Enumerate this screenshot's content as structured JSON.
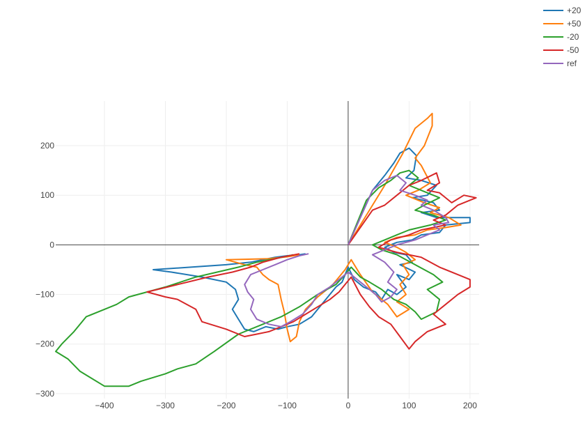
{
  "chart_data": {
    "type": "line",
    "title": "",
    "xlabel": "",
    "ylabel": "",
    "xlim": [
      -480,
      215
    ],
    "ylim": [
      -310,
      290
    ],
    "xticks": [
      -400,
      -300,
      -200,
      -100,
      0,
      100,
      200
    ],
    "yticks": [
      -300,
      -200,
      -100,
      0,
      100,
      200
    ],
    "xtick_labels": [
      "−400",
      "−300",
      "−200",
      "−100",
      "0",
      "100",
      "200"
    ],
    "ytick_labels": [
      "−300",
      "−200",
      "−100",
      "0",
      "100",
      "200"
    ],
    "grid": true,
    "zero_lines": true,
    "legend_position": "top-right",
    "series": [
      {
        "name": "+20",
        "color": "#1f77b4",
        "points": [
          [
            0,
            0
          ],
          [
            40,
            110
          ],
          [
            60,
            140
          ],
          [
            75,
            165
          ],
          [
            85,
            185
          ],
          [
            100,
            195
          ],
          [
            112,
            180
          ],
          [
            108,
            150
          ],
          [
            95,
            135
          ],
          [
            120,
            130
          ],
          [
            145,
            120
          ],
          [
            130,
            100
          ],
          [
            105,
            95
          ],
          [
            140,
            85
          ],
          [
            150,
            70
          ],
          [
            120,
            65
          ],
          [
            145,
            55
          ],
          [
            200,
            55
          ],
          [
            200,
            45
          ],
          [
            160,
            40
          ],
          [
            150,
            25
          ],
          [
            120,
            20
          ],
          [
            105,
            10
          ],
          [
            80,
            5
          ],
          [
            60,
            -5
          ],
          [
            75,
            -15
          ],
          [
            95,
            -20
          ],
          [
            105,
            -35
          ],
          [
            85,
            -40
          ],
          [
            110,
            -55
          ],
          [
            100,
            -70
          ],
          [
            80,
            -60
          ],
          [
            95,
            -85
          ],
          [
            80,
            -100
          ],
          [
            65,
            -90
          ],
          [
            55,
            -110
          ],
          [
            45,
            -95
          ],
          [
            25,
            -85
          ],
          [
            10,
            -70
          ],
          [
            0,
            -45
          ],
          [
            -10,
            -75
          ],
          [
            -20,
            -85
          ],
          [
            -40,
            -115
          ],
          [
            -60,
            -145
          ],
          [
            -80,
            -160
          ],
          [
            -100,
            -165
          ],
          [
            -115,
            -170
          ],
          [
            -135,
            -165
          ],
          [
            -155,
            -175
          ],
          [
            -170,
            -170
          ],
          [
            -180,
            -150
          ],
          [
            -190,
            -130
          ],
          [
            -180,
            -110
          ],
          [
            -185,
            -90
          ],
          [
            -200,
            -75
          ],
          [
            -240,
            -65
          ],
          [
            -290,
            -55
          ],
          [
            -320,
            -50
          ],
          [
            -200,
            -40
          ],
          [
            -160,
            -35
          ],
          [
            -140,
            -30
          ],
          [
            -120,
            -25
          ],
          [
            -100,
            -22
          ],
          [
            -80,
            -20
          ],
          [
            -70,
            -18
          ]
        ]
      },
      {
        "name": "+50",
        "color": "#ff7f0e",
        "points": [
          [
            0,
            0
          ],
          [
            60,
            120
          ],
          [
            90,
            185
          ],
          [
            110,
            235
          ],
          [
            130,
            255
          ],
          [
            138,
            265
          ],
          [
            138,
            240
          ],
          [
            125,
            200
          ],
          [
            110,
            175
          ],
          [
            120,
            160
          ],
          [
            135,
            125
          ],
          [
            115,
            110
          ],
          [
            95,
            100
          ],
          [
            125,
            85
          ],
          [
            150,
            75
          ],
          [
            135,
            65
          ],
          [
            165,
            55
          ],
          [
            185,
            40
          ],
          [
            160,
            35
          ],
          [
            130,
            30
          ],
          [
            110,
            20
          ],
          [
            80,
            15
          ],
          [
            60,
            5
          ],
          [
            80,
            -5
          ],
          [
            95,
            -15
          ],
          [
            110,
            -30
          ],
          [
            90,
            -40
          ],
          [
            100,
            -60
          ],
          [
            85,
            -80
          ],
          [
            95,
            -100
          ],
          [
            80,
            -115
          ],
          [
            100,
            -130
          ],
          [
            80,
            -145
          ],
          [
            65,
            -120
          ],
          [
            50,
            -105
          ],
          [
            40,
            -95
          ],
          [
            20,
            -60
          ],
          [
            5,
            -30
          ],
          [
            -5,
            -50
          ],
          [
            -15,
            -65
          ],
          [
            -25,
            -80
          ],
          [
            -50,
            -105
          ],
          [
            -70,
            -130
          ],
          [
            -80,
            -155
          ],
          [
            -85,
            -185
          ],
          [
            -95,
            -195
          ],
          [
            -100,
            -170
          ],
          [
            -105,
            -135
          ],
          [
            -110,
            -110
          ],
          [
            -115,
            -80
          ],
          [
            -130,
            -70
          ],
          [
            -140,
            -60
          ],
          [
            -150,
            -45
          ],
          [
            -170,
            -40
          ],
          [
            -200,
            -30
          ],
          [
            -130,
            -28
          ],
          [
            -100,
            -24
          ],
          [
            -80,
            -20
          ]
        ]
      },
      {
        "name": "-20",
        "color": "#2ca02c",
        "points": [
          [
            0,
            0
          ],
          [
            30,
            90
          ],
          [
            50,
            115
          ],
          [
            70,
            130
          ],
          [
            85,
            145
          ],
          [
            100,
            150
          ],
          [
            115,
            135
          ],
          [
            100,
            120
          ],
          [
            130,
            105
          ],
          [
            150,
            95
          ],
          [
            125,
            80
          ],
          [
            110,
            70
          ],
          [
            140,
            60
          ],
          [
            160,
            50
          ],
          [
            135,
            40
          ],
          [
            100,
            30
          ],
          [
            80,
            20
          ],
          [
            60,
            10
          ],
          [
            40,
            0
          ],
          [
            55,
            -10
          ],
          [
            80,
            -20
          ],
          [
            110,
            -40
          ],
          [
            140,
            -60
          ],
          [
            155,
            -75
          ],
          [
            130,
            -90
          ],
          [
            150,
            -110
          ],
          [
            145,
            -135
          ],
          [
            120,
            -150
          ],
          [
            110,
            -135
          ],
          [
            95,
            -120
          ],
          [
            75,
            -110
          ],
          [
            55,
            -90
          ],
          [
            35,
            -75
          ],
          [
            20,
            -65
          ],
          [
            5,
            -45
          ],
          [
            -5,
            -60
          ],
          [
            -20,
            -80
          ],
          [
            -50,
            -100
          ],
          [
            -80,
            -125
          ],
          [
            -110,
            -145
          ],
          [
            -140,
            -160
          ],
          [
            -180,
            -180
          ],
          [
            -220,
            -215
          ],
          [
            -250,
            -240
          ],
          [
            -280,
            -250
          ],
          [
            -300,
            -260
          ],
          [
            -340,
            -275
          ],
          [
            -360,
            -285
          ],
          [
            -400,
            -285
          ],
          [
            -440,
            -255
          ],
          [
            -460,
            -230
          ],
          [
            -480,
            -215
          ],
          [
            -470,
            -200
          ],
          [
            -450,
            -175
          ],
          [
            -430,
            -145
          ],
          [
            -400,
            -130
          ],
          [
            -380,
            -120
          ],
          [
            -360,
            -105
          ],
          [
            -300,
            -85
          ],
          [
            -250,
            -65
          ],
          [
            -180,
            -45
          ],
          [
            -150,
            -35
          ],
          [
            -120,
            -28
          ],
          [
            -90,
            -20
          ]
        ]
      },
      {
        "name": "-50",
        "color": "#d62728",
        "points": [
          [
            0,
            0
          ],
          [
            40,
            70
          ],
          [
            60,
            80
          ],
          [
            80,
            100
          ],
          [
            100,
            120
          ],
          [
            120,
            130
          ],
          [
            145,
            145
          ],
          [
            150,
            125
          ],
          [
            130,
            110
          ],
          [
            150,
            105
          ],
          [
            170,
            85
          ],
          [
            190,
            100
          ],
          [
            210,
            95
          ],
          [
            180,
            80
          ],
          [
            160,
            60
          ],
          [
            140,
            50
          ],
          [
            160,
            40
          ],
          [
            120,
            30
          ],
          [
            100,
            20
          ],
          [
            70,
            10
          ],
          [
            50,
            -5
          ],
          [
            80,
            -15
          ],
          [
            120,
            -25
          ],
          [
            150,
            -45
          ],
          [
            180,
            -60
          ],
          [
            200,
            -70
          ],
          [
            200,
            -85
          ],
          [
            180,
            -100
          ],
          [
            160,
            -120
          ],
          [
            140,
            -140
          ],
          [
            160,
            -160
          ],
          [
            130,
            -175
          ],
          [
            110,
            -195
          ],
          [
            100,
            -210
          ],
          [
            85,
            -185
          ],
          [
            70,
            -160
          ],
          [
            50,
            -145
          ],
          [
            35,
            -125
          ],
          [
            20,
            -100
          ],
          [
            5,
            -65
          ],
          [
            -5,
            -80
          ],
          [
            -15,
            -95
          ],
          [
            -30,
            -110
          ],
          [
            -50,
            -125
          ],
          [
            -70,
            -140
          ],
          [
            -90,
            -155
          ],
          [
            -110,
            -165
          ],
          [
            -130,
            -175
          ],
          [
            -150,
            -180
          ],
          [
            -170,
            -185
          ],
          [
            -200,
            -170
          ],
          [
            -240,
            -155
          ],
          [
            -250,
            -130
          ],
          [
            -280,
            -110
          ],
          [
            -300,
            -105
          ],
          [
            -330,
            -95
          ],
          [
            -280,
            -80
          ],
          [
            -230,
            -65
          ],
          [
            -190,
            -55
          ],
          [
            -160,
            -45
          ],
          [
            -140,
            -35
          ],
          [
            -110,
            -25
          ],
          [
            -80,
            -18
          ]
        ]
      },
      {
        "name": "ref",
        "color": "#9467bd",
        "points": [
          [
            0,
            0
          ],
          [
            40,
            110
          ],
          [
            60,
            130
          ],
          [
            80,
            140
          ],
          [
            95,
            125
          ],
          [
            85,
            110
          ],
          [
            110,
            100
          ],
          [
            130,
            90
          ],
          [
            120,
            80
          ],
          [
            140,
            70
          ],
          [
            160,
            55
          ],
          [
            165,
            45
          ],
          [
            140,
            40
          ],
          [
            150,
            30
          ],
          [
            130,
            20
          ],
          [
            110,
            10
          ],
          [
            80,
            0
          ],
          [
            60,
            -10
          ],
          [
            40,
            -20
          ],
          [
            60,
            -35
          ],
          [
            75,
            -55
          ],
          [
            65,
            -75
          ],
          [
            80,
            -90
          ],
          [
            70,
            -105
          ],
          [
            55,
            -115
          ],
          [
            45,
            -100
          ],
          [
            30,
            -85
          ],
          [
            15,
            -70
          ],
          [
            0,
            -55
          ],
          [
            -15,
            -70
          ],
          [
            -30,
            -85
          ],
          [
            -50,
            -100
          ],
          [
            -60,
            -120
          ],
          [
            -75,
            -140
          ],
          [
            -95,
            -155
          ],
          [
            -110,
            -165
          ],
          [
            -130,
            -160
          ],
          [
            -150,
            -150
          ],
          [
            -160,
            -130
          ],
          [
            -155,
            -110
          ],
          [
            -165,
            -95
          ],
          [
            -170,
            -80
          ],
          [
            -160,
            -60
          ],
          [
            -140,
            -50
          ],
          [
            -120,
            -40
          ],
          [
            -100,
            -30
          ],
          [
            -80,
            -22
          ],
          [
            -65,
            -18
          ]
        ]
      }
    ]
  }
}
